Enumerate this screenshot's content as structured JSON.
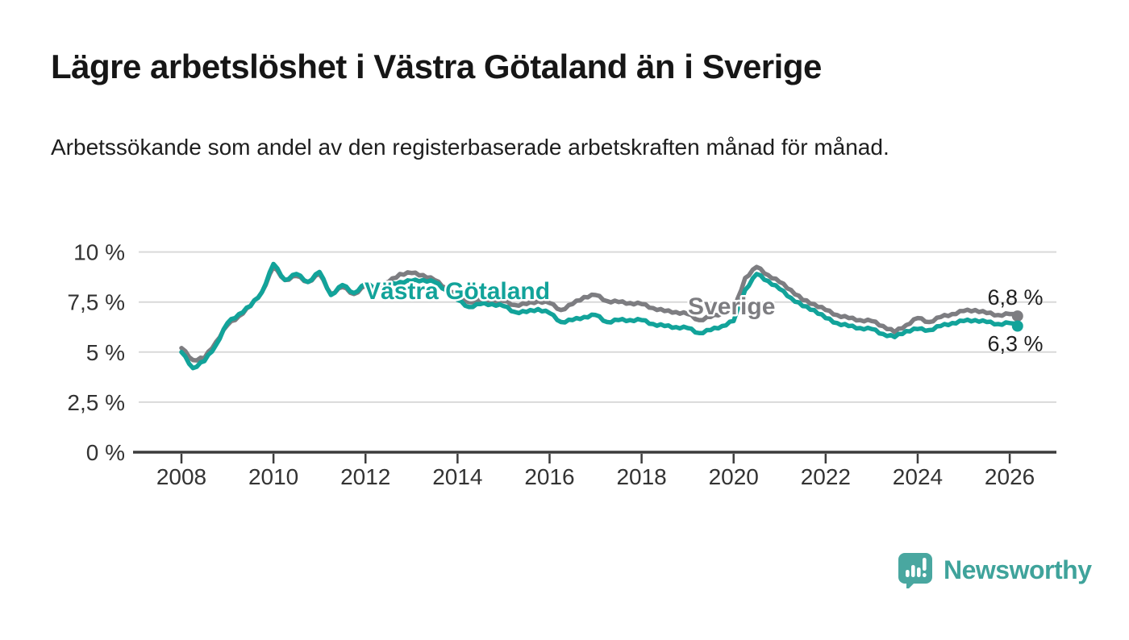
{
  "header": {
    "title": "Lägre arbetslöshet i Västra Götaland än i Sverige",
    "subtitle": "Arbetssökande som andel av den registerbaserade arbetskraften månad för månad."
  },
  "colors": {
    "sverige_gray": "#7d7d81",
    "vastra_gotaland_teal": "#12a39a",
    "axis": "#3c3c3c",
    "grid": "#d9d9d9",
    "tick_label": "#333333",
    "value_label": "#1f1f1f",
    "logo_teal": "#49a7a0",
    "logo_text_teal": "#3fa39b"
  },
  "chart_data": {
    "type": "line",
    "title": "",
    "xlabel": "",
    "ylabel": "",
    "x_unit": "year (monthly series, Jan 2008 - Feb 2026)",
    "grid": true,
    "legend": "inline-labels",
    "xlim": [
      2007.0,
      2027.0
    ],
    "ylim": [
      0,
      10.5
    ],
    "x_ticks": [
      {
        "value": 2008,
        "label": "2008"
      },
      {
        "value": 2010,
        "label": "2010"
      },
      {
        "value": 2012,
        "label": "2012"
      },
      {
        "value": 2014,
        "label": "2014"
      },
      {
        "value": 2016,
        "label": "2016"
      },
      {
        "value": 2018,
        "label": "2018"
      },
      {
        "value": 2020,
        "label": "2020"
      },
      {
        "value": 2022,
        "label": "2022"
      },
      {
        "value": 2024,
        "label": "2024"
      },
      {
        "value": 2026,
        "label": "2026"
      }
    ],
    "y_ticks": [
      {
        "value": 0,
        "label": "0 %"
      },
      {
        "value": 2.5,
        "label": "2,5 %"
      },
      {
        "value": 5,
        "label": "5 %"
      },
      {
        "value": 7.5,
        "label": "7,5 %"
      },
      {
        "value": 10,
        "label": "10 %"
      }
    ],
    "x": [
      2008.0,
      2008.25,
      2008.5,
      2008.75,
      2009.0,
      2009.25,
      2009.5,
      2009.75,
      2010.0,
      2010.25,
      2010.5,
      2010.75,
      2011.0,
      2011.25,
      2011.5,
      2011.75,
      2012.0,
      2012.25,
      2012.5,
      2012.75,
      2013.0,
      2013.25,
      2013.5,
      2013.75,
      2014.0,
      2014.25,
      2014.5,
      2014.75,
      2015.0,
      2015.25,
      2015.5,
      2015.75,
      2016.0,
      2016.25,
      2016.5,
      2016.75,
      2017.0,
      2017.25,
      2017.5,
      2017.75,
      2018.0,
      2018.25,
      2018.5,
      2018.75,
      2019.0,
      2019.25,
      2019.5,
      2019.75,
      2020.0,
      2020.25,
      2020.5,
      2020.75,
      2021.0,
      2021.25,
      2021.5,
      2021.75,
      2022.0,
      2022.25,
      2022.5,
      2022.75,
      2023.0,
      2023.25,
      2023.5,
      2023.75,
      2024.0,
      2024.25,
      2024.5,
      2024.75,
      2025.0,
      2025.25,
      2025.5,
      2025.75,
      2026.0,
      2026.17
    ],
    "series": [
      {
        "name": "Sverige",
        "color": "#7d7d81",
        "end_value": 6.8,
        "end_label": "6,8 %",
        "values": [
          5.2,
          4.6,
          4.7,
          5.5,
          6.35,
          6.8,
          7.3,
          8.0,
          9.25,
          8.6,
          8.8,
          8.5,
          8.9,
          7.9,
          8.25,
          7.9,
          8.3,
          8.2,
          8.5,
          8.9,
          8.95,
          8.85,
          8.6,
          8.2,
          7.8,
          7.5,
          7.6,
          7.55,
          7.55,
          7.35,
          7.4,
          7.55,
          7.45,
          7.1,
          7.4,
          7.75,
          7.85,
          7.55,
          7.5,
          7.45,
          7.4,
          7.2,
          7.05,
          7.0,
          6.9,
          6.6,
          6.75,
          6.95,
          7.05,
          8.7,
          9.25,
          8.85,
          8.5,
          8.1,
          7.6,
          7.4,
          7.1,
          6.85,
          6.7,
          6.6,
          6.55,
          6.3,
          6.0,
          6.35,
          6.7,
          6.5,
          6.75,
          6.9,
          7.05,
          7.1,
          6.95,
          6.85,
          6.9,
          6.8
        ]
      },
      {
        "name": "Västra Götaland",
        "color": "#12a39a",
        "end_value": 6.3,
        "end_label": "6,3 %",
        "values": [
          5.0,
          4.2,
          4.55,
          5.35,
          6.45,
          6.9,
          7.3,
          8.0,
          9.4,
          8.6,
          8.9,
          8.5,
          9.0,
          7.85,
          8.35,
          7.95,
          8.4,
          8.2,
          8.35,
          8.5,
          8.55,
          8.6,
          8.5,
          8.1,
          7.6,
          7.25,
          7.4,
          7.4,
          7.3,
          7.0,
          7.0,
          7.15,
          6.95,
          6.5,
          6.6,
          6.75,
          6.85,
          6.5,
          6.6,
          6.6,
          6.6,
          6.4,
          6.3,
          6.25,
          6.2,
          5.95,
          6.1,
          6.3,
          6.55,
          8.1,
          8.9,
          8.55,
          8.15,
          7.7,
          7.3,
          7.1,
          6.7,
          6.45,
          6.3,
          6.2,
          6.15,
          5.9,
          5.75,
          6.05,
          6.15,
          6.1,
          6.3,
          6.45,
          6.55,
          6.6,
          6.5,
          6.4,
          6.45,
          6.3
        ]
      }
    ]
  },
  "footer": {
    "brand": "Newsworthy"
  }
}
